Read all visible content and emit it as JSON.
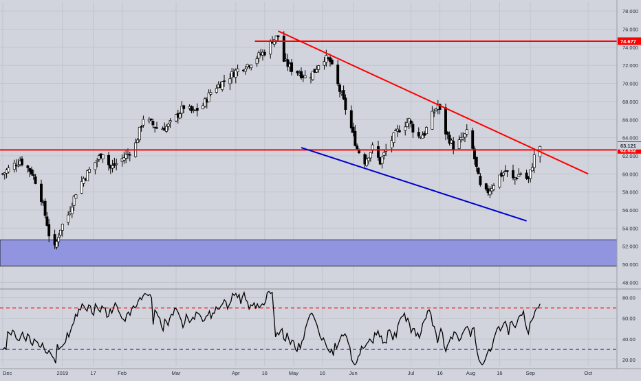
{
  "colors": {
    "background": "#d1d4dc",
    "grid": "#c2c5cd",
    "up_candle": "#ffffff",
    "down_candle": "#000000",
    "trendline": "#ff0000",
    "support_line": "#0000cc",
    "zone_fill": "#9195e0",
    "rsi_line": "#000000",
    "rsi_upper": "#ff0000",
    "rsi_lower": "#1f2f9a"
  },
  "chart_data": [
    {
      "type": "candlestick",
      "title": "",
      "xlabel": "",
      "ylabel": "",
      "x_ticks": [
        "Dec",
        "2019",
        "17",
        "Feb",
        "Mar",
        "Apr",
        "16",
        "May",
        "16",
        "Jun",
        "Jul",
        "16",
        "Aug",
        "16",
        "Sep",
        "Oct"
      ],
      "y_ticks": [
        "48.000",
        "50.000",
        "52.000",
        "54.000",
        "56.000",
        "58.000",
        "60.000",
        "62.000",
        "64.000",
        "66.000",
        "68.000",
        "70.000",
        "72.000",
        "74.000",
        "76.000",
        "78.000"
      ],
      "ylim": [
        47.5,
        79
      ],
      "price_labels": {
        "resistance": "74.677",
        "current": "63.121",
        "support": "62.652"
      },
      "horizontal_levels": [
        74.677,
        62.652
      ],
      "zone": [
        49.8,
        52.7
      ],
      "trendlines": [
        {
          "name": "",
          "color": "#ff0000",
          "from": [
            "Apr 23",
            75.8
          ],
          "to": [
            "Oct 1",
            60.0
          ]
        },
        {
          "name": "",
          "color": "#0000cc",
          "from": [
            "May 5",
            62.9
          ],
          "to": [
            "Aug 30",
            54.8
          ]
        }
      ],
      "close_path": [
        [
          "Dec 1",
          60.0
        ],
        [
          "Dec 5",
          60.7
        ],
        [
          "Dec 10",
          61.5
        ],
        [
          "Dec 16",
          60.2
        ],
        [
          "Dec 20",
          58.3
        ],
        [
          "Dec 24",
          54.5
        ],
        [
          "Dec 27",
          51.0
        ],
        [
          "Dec 31",
          54.0
        ],
        [
          "Jan 4",
          55.5
        ],
        [
          "Jan 8",
          58.0
        ],
        [
          "Jan 12",
          59.5
        ],
        [
          "Jan 17",
          61.0
        ],
        [
          "Jan 22",
          62.4
        ],
        [
          "Jan 26",
          60.6
        ],
        [
          "Jan 31",
          61.5
        ],
        [
          "Feb 4",
          62.2
        ],
        [
          "Feb 8",
          63.3
        ],
        [
          "Feb 12",
          66.2
        ],
        [
          "Feb 16",
          65.6
        ],
        [
          "Feb 20",
          64.9
        ],
        [
          "Feb 25",
          65.3
        ],
        [
          "Mar 1",
          66.3
        ],
        [
          "Mar 5",
          67.4
        ],
        [
          "Mar 10",
          66.8
        ],
        [
          "Mar 15",
          67.6
        ],
        [
          "Mar 20",
          69.4
        ],
        [
          "Mar 25",
          70.1
        ],
        [
          "Mar 30",
          71.0
        ],
        [
          "Apr 3",
          71.7
        ],
        [
          "Apr 8",
          72.2
        ],
        [
          "Apr 12",
          72.9
        ],
        [
          "Apr 16",
          73.5
        ],
        [
          "Apr 20",
          74.8
        ],
        [
          "Apr 23",
          75.2
        ],
        [
          "Apr 26",
          72.5
        ],
        [
          "Apr 30",
          71.6
        ],
        [
          "May 4",
          71.2
        ],
        [
          "May 8",
          70.6
        ],
        [
          "May 12",
          71.4
        ],
        [
          "May 16",
          73.0
        ],
        [
          "May 20",
          72.4
        ],
        [
          "May 23",
          70.4
        ],
        [
          "May 27",
          68.0
        ],
        [
          "May 31",
          65.0
        ],
        [
          "Jun 3",
          62.8
        ],
        [
          "Jun 7",
          61.4
        ],
        [
          "Jun 11",
          62.9
        ],
        [
          "Jun 15",
          61.3
        ],
        [
          "Jun 20",
          63.5
        ],
        [
          "Jun 25",
          65.0
        ],
        [
          "Jun 30",
          65.9
        ],
        [
          "Jul 4",
          64.0
        ],
        [
          "Jul 8",
          64.5
        ],
        [
          "Jul 12",
          66.5
        ],
        [
          "Jul 15",
          67.6
        ],
        [
          "Jul 19",
          64.6
        ],
        [
          "Jul 23",
          63.0
        ],
        [
          "Jul 27",
          63.7
        ],
        [
          "Jul 31",
          64.8
        ],
        [
          "Aug 4",
          60.6
        ],
        [
          "Aug 7",
          57.5
        ],
        [
          "Aug 11",
          58.3
        ],
        [
          "Aug 15",
          59.6
        ],
        [
          "Aug 19",
          60.3
        ],
        [
          "Aug 23",
          59.4
        ],
        [
          "Aug 27",
          60.1
        ],
        [
          "Aug 31",
          59.3
        ],
        [
          "Sep 3",
          61.9
        ],
        [
          "Sep 6",
          63.1
        ]
      ]
    },
    {
      "type": "line",
      "title": "",
      "name": "",
      "y_ticks": [
        "20.00",
        "40.00",
        "60.00",
        "80.00"
      ],
      "ylim": [
        14,
        87
      ],
      "reference_levels": [
        70,
        30
      ],
      "values": [
        29.5,
        31.5,
        30,
        47,
        45.5,
        44,
        48.5,
        47,
        41,
        39,
        38.5,
        43,
        46.5,
        41,
        38,
        45,
        43,
        36,
        34,
        40,
        38,
        37,
        33,
        32,
        36,
        31,
        27,
        26,
        29,
        26,
        23,
        21,
        16.5,
        35,
        30,
        32,
        33,
        35,
        37,
        46,
        42,
        48,
        53,
        56,
        64,
        62,
        69,
        68,
        74,
        72,
        69,
        67,
        73,
        72,
        65,
        63,
        74,
        71,
        68,
        66,
        72,
        70,
        70,
        61,
        62,
        69,
        65,
        70,
        75,
        72,
        67,
        64,
        60,
        59,
        57,
        64,
        66,
        63,
        69,
        72,
        70,
        72,
        77,
        80,
        78,
        82,
        84,
        83,
        82,
        83,
        80,
        54,
        68,
        66,
        62,
        60,
        52,
        48,
        59,
        57,
        53,
        60,
        64,
        63,
        70,
        69,
        66,
        62,
        58,
        51,
        55,
        64,
        60,
        56,
        58,
        61,
        59,
        66,
        65,
        64,
        61,
        57,
        58,
        62,
        63,
        67,
        60,
        65,
        65,
        71,
        69,
        69,
        72,
        74,
        78,
        76,
        69,
        73,
        76,
        84,
        82,
        84,
        80,
        83,
        74,
        81,
        85,
        78,
        76,
        69,
        73,
        72,
        75,
        70,
        74,
        70,
        72,
        74,
        73,
        76,
        85,
        86,
        84,
        85,
        64,
        42,
        46,
        44,
        48,
        50,
        40,
        38,
        46,
        40,
        35,
        39,
        38,
        30,
        28,
        36,
        31,
        38,
        40,
        50,
        55,
        60,
        64,
        65,
        62,
        58,
        54,
        48,
        42,
        39,
        41,
        37,
        32,
        29,
        27,
        30,
        24,
        36,
        31,
        35,
        40,
        44,
        43,
        45,
        42,
        36,
        32,
        20,
        17,
        15,
        17,
        23,
        25,
        33,
        31,
        32,
        35,
        37,
        40,
        38,
        36,
        46,
        44,
        48,
        42,
        43,
        36,
        37,
        36,
        48,
        49,
        45,
        39,
        46,
        42,
        53,
        58,
        61,
        62,
        65,
        57,
        60,
        55,
        46,
        50,
        50,
        43,
        46,
        41,
        46,
        55,
        58,
        60,
        67,
        68,
        64,
        53,
        52,
        46,
        36,
        44,
        50,
        46,
        33,
        28,
        34,
        37,
        42,
        40,
        47,
        46,
        43,
        38,
        40,
        45,
        48,
        51,
        52,
        49,
        42,
        50,
        51,
        37,
        27,
        20,
        17,
        15,
        17,
        21,
        26,
        30,
        28,
        32,
        40,
        45,
        50,
        52,
        48,
        51,
        55,
        57,
        52,
        44,
        56,
        57,
        53,
        51,
        55,
        61,
        63,
        63,
        67,
        56,
        49,
        45,
        56,
        58,
        61,
        67,
        70,
        70,
        74
      ],
      "x_range": [
        "Dec 1",
        "Sep 6"
      ]
    }
  ]
}
